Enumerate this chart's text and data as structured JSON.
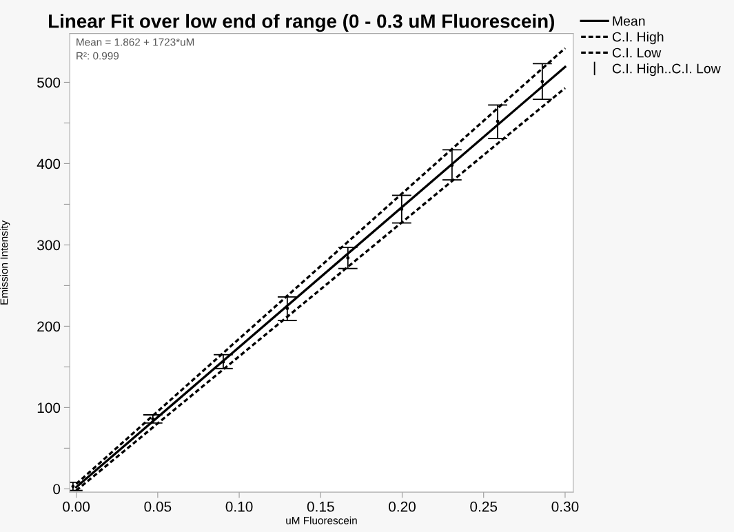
{
  "chart_data": {
    "type": "line",
    "title": "Linear Fit over low end of range (0 - 0.3 uM Fluorescein)",
    "xlabel": "uM Fluorescein",
    "ylabel": "Emission Intensity",
    "annotations": [
      "Mean = 1.862 + 1723*uM",
      "R²: 0.999"
    ],
    "xlim": [
      -0.004,
      0.305
    ],
    "ylim": [
      -4,
      560
    ],
    "xticks": [
      {
        "value": 0,
        "label": "0.00"
      },
      {
        "value": 0.05,
        "label": "0.05"
      },
      {
        "value": 0.1,
        "label": "0.10"
      },
      {
        "value": 0.15,
        "label": "0.15"
      },
      {
        "value": 0.2,
        "label": "0.20"
      },
      {
        "value": 0.25,
        "label": "0.25"
      },
      {
        "value": 0.3,
        "label": "0.30"
      }
    ],
    "yticks": [
      0,
      {
        "value": 50,
        "label": null
      },
      100,
      {
        "value": 150,
        "label": null
      },
      200,
      {
        "value": 250,
        "label": null
      },
      300,
      {
        "value": 350,
        "label": null
      },
      400,
      {
        "value": 450,
        "label": null
      },
      500
    ],
    "grid": false,
    "legend": "top right",
    "marker": "none",
    "series": [
      {
        "name": "Mean",
        "color": "#000000",
        "line_style": "solid",
        "x": [
          0,
          0.3
        ],
        "values": [
          2,
          519
        ]
      },
      {
        "name": "C.I. High",
        "color": "#000000",
        "line_style": "dotted",
        "x": [
          0,
          0.3
        ],
        "values": [
          6,
          542
        ]
      },
      {
        "name": "C.I. Low",
        "color": "#000000",
        "line_style": "dotted",
        "x": [
          0,
          0.3
        ],
        "values": [
          -2,
          493
        ]
      },
      {
        "name": "C.I. High..C.I. Low",
        "type": "scatter",
        "marker": "circle",
        "color": "#000000",
        "x": [
          -0.002,
          0.047,
          0.0902,
          0.1295,
          0.1667,
          0.1997,
          0.2306,
          0.2586,
          0.286
        ],
        "values": [
          3,
          86,
          156,
          222,
          284,
          344,
          398,
          452,
          501
        ],
        "errors": [
          [
            -2,
            8
          ],
          [
            81,
            91
          ],
          [
            148,
            165
          ],
          [
            207,
            236
          ],
          [
            271,
            297
          ],
          [
            327,
            361
          ],
          [
            380,
            417
          ],
          [
            431,
            472
          ],
          [
            479,
            523
          ]
        ]
      }
    ]
  }
}
